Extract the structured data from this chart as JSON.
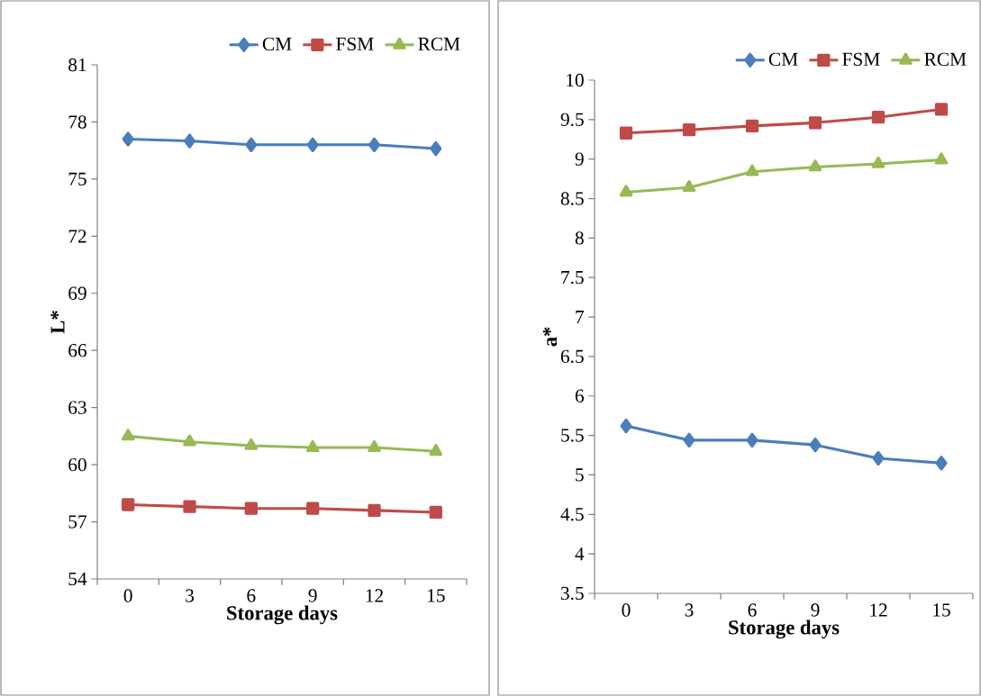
{
  "chart_data": [
    {
      "type": "line",
      "xlabel": "Storage days",
      "ylabel": "L*",
      "categories": [
        "0",
        "3",
        "6",
        "9",
        "12",
        "15"
      ],
      "ylim": [
        54,
        81
      ],
      "yticks": [
        54,
        57,
        60,
        63,
        66,
        69,
        72,
        75,
        78,
        81
      ],
      "legend": "top right",
      "line_style": "solid",
      "series": [
        {
          "name": "CM",
          "color": "#4a7ebb",
          "marker": "diamond",
          "values": [
            77.1,
            77.0,
            76.8,
            76.8,
            76.8,
            76.6
          ]
        },
        {
          "name": "FSM",
          "color": "#be4b48",
          "marker": "square",
          "values": [
            57.9,
            57.8,
            57.7,
            57.7,
            57.6,
            57.5
          ]
        },
        {
          "name": "RCM",
          "color": "#98b954",
          "marker": "triangle",
          "values": [
            61.5,
            61.2,
            61.0,
            60.9,
            60.9,
            60.7
          ]
        }
      ]
    },
    {
      "type": "line",
      "xlabel": "Storage days",
      "ylabel": "a*",
      "categories": [
        "0",
        "3",
        "6",
        "9",
        "12",
        "15"
      ],
      "ylim": [
        3.5,
        10
      ],
      "yticks": [
        3.5,
        4,
        4.5,
        5,
        5.5,
        6,
        6.5,
        7,
        7.5,
        8,
        8.5,
        9,
        9.5,
        10
      ],
      "legend": "top right",
      "line_style": "solid",
      "series": [
        {
          "name": "CM",
          "color": "#4a7ebb",
          "marker": "diamond",
          "values": [
            5.62,
            5.44,
            5.44,
            5.38,
            5.21,
            5.15
          ]
        },
        {
          "name": "FSM",
          "color": "#be4b48",
          "marker": "square",
          "values": [
            9.33,
            9.37,
            9.42,
            9.46,
            9.53,
            9.63
          ]
        },
        {
          "name": "RCM",
          "color": "#98b954",
          "marker": "triangle",
          "values": [
            8.58,
            8.64,
            8.84,
            8.9,
            8.94,
            8.99
          ]
        }
      ]
    }
  ]
}
